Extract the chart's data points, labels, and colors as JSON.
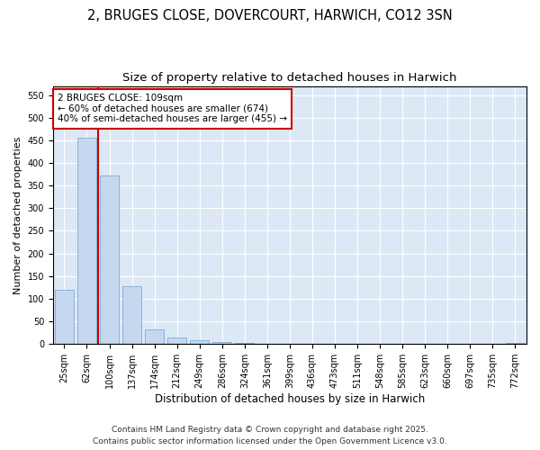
{
  "title1": "2, BRUGES CLOSE, DOVERCOURT, HARWICH, CO12 3SN",
  "title2": "Size of property relative to detached houses in Harwich",
  "xlabel": "Distribution of detached houses by size in Harwich",
  "ylabel": "Number of detached properties",
  "categories": [
    "25sqm",
    "62sqm",
    "100sqm",
    "137sqm",
    "174sqm",
    "212sqm",
    "249sqm",
    "286sqm",
    "324sqm",
    "361sqm",
    "399sqm",
    "436sqm",
    "473sqm",
    "511sqm",
    "548sqm",
    "585sqm",
    "623sqm",
    "660sqm",
    "697sqm",
    "735sqm",
    "772sqm"
  ],
  "values": [
    120,
    455,
    373,
    128,
    33,
    15,
    8,
    4,
    3,
    0,
    0,
    0,
    0,
    0,
    0,
    0,
    0,
    0,
    0,
    0,
    2
  ],
  "bar_color": "#c5d8f0",
  "bar_edge_color": "#7badd4",
  "vline_pos": 1.5,
  "vline_color": "#cc0000",
  "annotation_text": "2 BRUGES CLOSE: 109sqm\n← 60% of detached houses are smaller (674)\n40% of semi-detached houses are larger (455) →",
  "annotation_box_facecolor": "#ffffff",
  "annotation_box_edgecolor": "#cc0000",
  "ylim": [
    0,
    570
  ],
  "yticks": [
    0,
    50,
    100,
    150,
    200,
    250,
    300,
    350,
    400,
    450,
    500,
    550
  ],
  "ax_facecolor": "#dce8f5",
  "grid_color": "#ffffff",
  "fig_facecolor": "#ffffff",
  "footer1": "Contains HM Land Registry data © Crown copyright and database right 2025.",
  "footer2": "Contains public sector information licensed under the Open Government Licence v3.0.",
  "title_fontsize": 10.5,
  "subtitle_fontsize": 9.5,
  "tick_fontsize": 7,
  "xlabel_fontsize": 8.5,
  "ylabel_fontsize": 8,
  "annotation_fontsize": 7.5,
  "footer_fontsize": 6.5
}
